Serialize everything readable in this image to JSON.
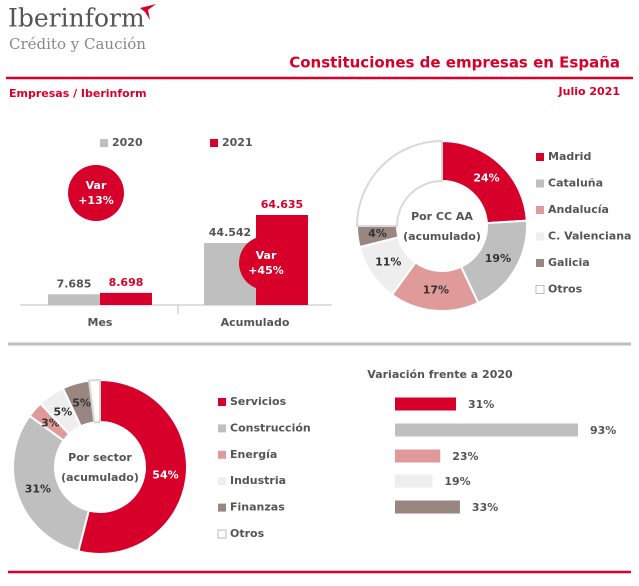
{
  "header": {
    "brand": "Iberinform",
    "tagline": "Crédito y Caución",
    "title": "Constituciones de empresas en España",
    "source": "Empresas / Iberinform",
    "date": "Julio 2021"
  },
  "chart_data": [
    {
      "type": "bar",
      "categories": [
        "Mes",
        "Acumulado"
      ],
      "series": [
        {
          "name": "2020",
          "color": "#bfbfbf",
          "values": [
            7685,
            44542
          ],
          "value_labels": [
            "7.685",
            "44.542"
          ]
        },
        {
          "name": "2021",
          "color": "#d7002a",
          "values": [
            8698,
            64635
          ],
          "value_labels": [
            "8.698",
            "64.635"
          ]
        }
      ],
      "annotations": [
        [
          "Var",
          "+13%"
        ],
        [
          "Var",
          "+45%"
        ]
      ]
    },
    {
      "type": "donut",
      "center_label": [
        "Por CC AA",
        "(acumulado)"
      ],
      "categories": [
        "Madrid",
        "Cataluña",
        "Andalucía",
        "C. Valenciana",
        "Galicia",
        "Otros"
      ],
      "values": [
        24,
        19,
        17,
        11,
        4,
        25
      ],
      "value_labels": [
        "24%",
        "19%",
        "17%",
        "11%",
        "4%",
        null
      ],
      "colors": [
        "#d7002a",
        "#bfbfbf",
        "#e09a9a",
        "#eeeeee",
        "#9a8680",
        "#ffffff"
      ]
    },
    {
      "type": "donut",
      "center_label": [
        "Por sector",
        "(acumulado)"
      ],
      "categories": [
        "Servicios",
        "Construcción",
        "Energía",
        "Industria",
        "Finanzas",
        "Otros"
      ],
      "values": [
        54,
        31,
        3,
        5,
        5,
        2
      ],
      "value_labels": [
        "54%",
        "31%",
        "3%",
        "5%",
        "5%",
        null
      ],
      "colors": [
        "#d7002a",
        "#bfbfbf",
        "#e09a9a",
        "#eeeeee",
        "#9a8680",
        "#ffffff"
      ]
    },
    {
      "type": "hbar",
      "title": "Variación frente a 2020",
      "values": [
        31,
        93,
        23,
        19,
        33
      ],
      "value_labels": [
        "31%",
        "93%",
        "23%",
        "19%",
        "33%"
      ],
      "colors": [
        "#d7002a",
        "#bfbfbf",
        "#e09a9a",
        "#eeeeee",
        "#9a8680"
      ]
    }
  ]
}
